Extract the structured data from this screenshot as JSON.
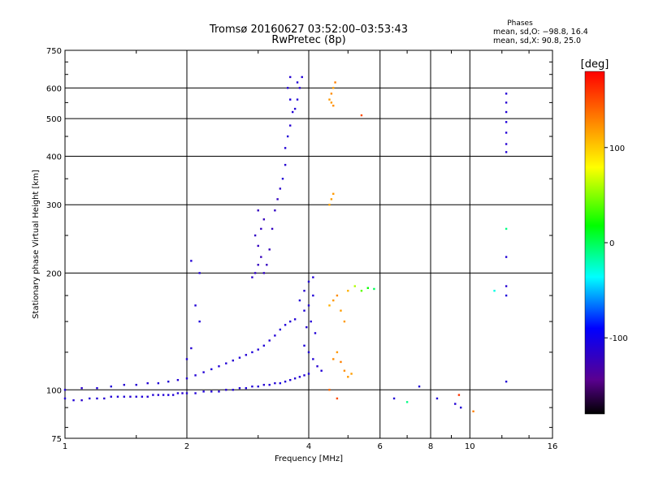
{
  "chart_data": {
    "type": "scatter",
    "title": "Tromsø 20160627 03:52:00–03:53:43",
    "subtitle": "RwPretec (8p)",
    "xlabel": "Frequency [MHz]",
    "ylabel": "Stationary phase Virtual Height [km]",
    "x_scale": "log",
    "y_scale": "log",
    "xlim": [
      1,
      16
    ],
    "ylim": [
      75,
      750
    ],
    "x_ticks": [
      1,
      2,
      4,
      6,
      8,
      10,
      16
    ],
    "y_ticks": [
      75,
      100,
      200,
      300,
      400,
      500,
      600,
      750
    ],
    "grid": true,
    "info": {
      "heading": "Phases",
      "line1": "mean, sd,O: −98.8, 16.4",
      "line2": "mean, sd,X:  90.8, 25.0"
    },
    "colorbar": {
      "label": "[deg]",
      "ticks": [
        100,
        0,
        -100
      ],
      "range": [
        -180,
        180
      ]
    },
    "series": [
      {
        "points": [
          [
            1.0,
            95,
            -110
          ],
          [
            1.05,
            94,
            -110
          ],
          [
            1.1,
            94,
            -115
          ],
          [
            1.15,
            95,
            -110
          ],
          [
            1.2,
            95,
            -110
          ],
          [
            1.25,
            95,
            -112
          ],
          [
            1.3,
            96,
            -110
          ],
          [
            1.35,
            96,
            -108
          ],
          [
            1.4,
            96,
            -110
          ],
          [
            1.45,
            96,
            -112
          ],
          [
            1.5,
            96,
            -110
          ],
          [
            1.55,
            96,
            -108
          ],
          [
            1.6,
            96,
            -110
          ],
          [
            1.65,
            97,
            -110
          ],
          [
            1.7,
            97,
            -112
          ],
          [
            1.75,
            97,
            -110
          ],
          [
            1.8,
            97,
            -108
          ],
          [
            1.85,
            97,
            -110
          ],
          [
            1.9,
            98,
            -110
          ],
          [
            1.95,
            98,
            -112
          ],
          [
            2.0,
            98,
            -110
          ],
          [
            2.1,
            98,
            -110
          ],
          [
            2.2,
            99,
            -108
          ],
          [
            2.3,
            99,
            -110
          ],
          [
            2.4,
            99,
            -110
          ],
          [
            2.5,
            100,
            -112
          ],
          [
            2.6,
            100,
            -110
          ],
          [
            2.7,
            101,
            -110
          ],
          [
            2.8,
            101,
            -108
          ],
          [
            2.9,
            102,
            -110
          ],
          [
            3.0,
            102,
            -110
          ],
          [
            3.1,
            103,
            -112
          ],
          [
            3.2,
            103,
            -110
          ],
          [
            3.3,
            104,
            -110
          ],
          [
            3.4,
            104,
            -105
          ],
          [
            3.5,
            105,
            -110
          ],
          [
            3.6,
            106,
            -110
          ],
          [
            3.7,
            107,
            -112
          ],
          [
            3.8,
            108,
            -110
          ],
          [
            3.9,
            109,
            -110
          ],
          [
            4.0,
            110,
            -108
          ],
          [
            1.0,
            100,
            -110
          ],
          [
            1.1,
            101,
            -115
          ],
          [
            1.2,
            101,
            -110
          ],
          [
            1.3,
            102,
            -110
          ],
          [
            1.4,
            103,
            -112
          ],
          [
            1.5,
            103,
            -110
          ],
          [
            1.6,
            104,
            -110
          ],
          [
            1.7,
            104,
            -108
          ],
          [
            1.8,
            105,
            -110
          ],
          [
            1.9,
            106,
            -110
          ],
          [
            2.0,
            107,
            -112
          ],
          [
            2.1,
            109,
            -110
          ],
          [
            2.2,
            111,
            -110
          ],
          [
            2.3,
            113,
            -108
          ],
          [
            2.4,
            115,
            -110
          ],
          [
            2.5,
            117,
            -110
          ],
          [
            2.6,
            119,
            -112
          ],
          [
            2.7,
            121,
            -110
          ],
          [
            2.8,
            123,
            -110
          ],
          [
            2.9,
            125,
            -108
          ],
          [
            3.0,
            127,
            -110
          ],
          [
            3.1,
            130,
            -110
          ],
          [
            3.2,
            134,
            -112
          ],
          [
            3.3,
            138,
            -110
          ],
          [
            3.4,
            143,
            -110
          ],
          [
            3.5,
            147,
            -108
          ],
          [
            3.6,
            150,
            -110
          ],
          [
            3.7,
            152,
            -110
          ],
          [
            2.0,
            120,
            -110
          ],
          [
            2.05,
            128,
            -112
          ],
          [
            2.1,
            165,
            -110
          ],
          [
            2.15,
            150,
            -108
          ],
          [
            2.05,
            215,
            -110
          ],
          [
            2.15,
            200,
            -110
          ],
          [
            2.9,
            195,
            -115
          ],
          [
            2.95,
            200,
            -118
          ],
          [
            3.0,
            210,
            -120
          ],
          [
            3.05,
            220,
            -122
          ],
          [
            3.0,
            235,
            -120
          ],
          [
            2.95,
            250,
            -118
          ],
          [
            3.05,
            260,
            -120
          ],
          [
            3.1,
            275,
            -122
          ],
          [
            3.0,
            290,
            -120
          ],
          [
            3.1,
            200,
            -118
          ],
          [
            3.15,
            210,
            -120
          ],
          [
            3.2,
            230,
            -122
          ],
          [
            3.25,
            260,
            -120
          ],
          [
            3.3,
            290,
            -118
          ],
          [
            3.35,
            310,
            -120
          ],
          [
            3.4,
            330,
            -115
          ],
          [
            3.45,
            350,
            -110
          ],
          [
            3.5,
            380,
            -112
          ],
          [
            3.5,
            420,
            -110
          ],
          [
            3.55,
            450,
            -110
          ],
          [
            3.6,
            480,
            -112
          ],
          [
            3.65,
            520,
            -110
          ],
          [
            3.6,
            560,
            -108
          ],
          [
            3.55,
            600,
            -110
          ],
          [
            3.6,
            640,
            -112
          ],
          [
            3.7,
            530,
            -110
          ],
          [
            3.75,
            560,
            -110
          ],
          [
            3.8,
            600,
            -112
          ],
          [
            3.85,
            640,
            -110
          ],
          [
            3.75,
            620,
            -108
          ],
          [
            3.8,
            170,
            -110
          ],
          [
            3.9,
            180,
            -112
          ],
          [
            4.0,
            190,
            -110
          ],
          [
            4.1,
            195,
            -110
          ],
          [
            3.9,
            160,
            -108
          ],
          [
            4.0,
            165,
            -110
          ],
          [
            4.1,
            175,
            -110
          ],
          [
            3.95,
            145,
            -112
          ],
          [
            4.05,
            150,
            -110
          ],
          [
            4.15,
            140,
            -110
          ],
          [
            3.9,
            130,
            -108
          ],
          [
            4.0,
            125,
            -110
          ],
          [
            4.1,
            120,
            -110
          ],
          [
            4.2,
            115,
            -112
          ],
          [
            4.3,
            112,
            -110
          ],
          [
            4.5,
            560,
            120
          ],
          [
            4.55,
            580,
            125
          ],
          [
            4.6,
            600,
            118
          ],
          [
            4.65,
            620,
            130
          ],
          [
            4.6,
            540,
            125
          ],
          [
            4.55,
            550,
            120
          ],
          [
            4.5,
            300,
            115
          ],
          [
            4.55,
            310,
            118
          ],
          [
            4.6,
            320,
            120
          ],
          [
            4.5,
            165,
            110
          ],
          [
            4.6,
            170,
            120
          ],
          [
            4.7,
            175,
            125
          ],
          [
            4.8,
            160,
            118
          ],
          [
            4.9,
            150,
            120
          ],
          [
            5.0,
            180,
            110
          ],
          [
            5.2,
            185,
            60
          ],
          [
            5.4,
            180,
            40
          ],
          [
            5.6,
            183,
            20
          ],
          [
            5.8,
            182,
            0
          ],
          [
            4.6,
            120,
            125
          ],
          [
            4.7,
            125,
            120
          ],
          [
            4.8,
            118,
            130
          ],
          [
            4.9,
            112,
            125
          ],
          [
            5.0,
            108,
            120
          ],
          [
            5.1,
            110,
            118
          ],
          [
            4.5,
            100,
            140
          ],
          [
            4.7,
            95,
            150
          ],
          [
            5.4,
            510,
            150
          ],
          [
            6.5,
            95,
            -110
          ],
          [
            7.0,
            93,
            -10
          ],
          [
            7.5,
            102,
            -110
          ],
          [
            8.3,
            95,
            -110
          ],
          [
            9.2,
            92,
            -110
          ],
          [
            9.5,
            90,
            -110
          ],
          [
            10.2,
            88,
            130
          ],
          [
            9.4,
            97,
            160
          ],
          [
            11.5,
            180,
            -30
          ],
          [
            12.3,
            580,
            -110
          ],
          [
            12.3,
            550,
            -112
          ],
          [
            12.3,
            520,
            -110
          ],
          [
            12.3,
            490,
            -108
          ],
          [
            12.3,
            460,
            -110
          ],
          [
            12.3,
            430,
            -112
          ],
          [
            12.3,
            410,
            -110
          ],
          [
            12.3,
            260,
            -10
          ],
          [
            12.3,
            220,
            -110
          ],
          [
            12.3,
            185,
            -112
          ],
          [
            12.3,
            175,
            -108
          ],
          [
            12.3,
            105,
            -110
          ]
        ]
      }
    ]
  }
}
